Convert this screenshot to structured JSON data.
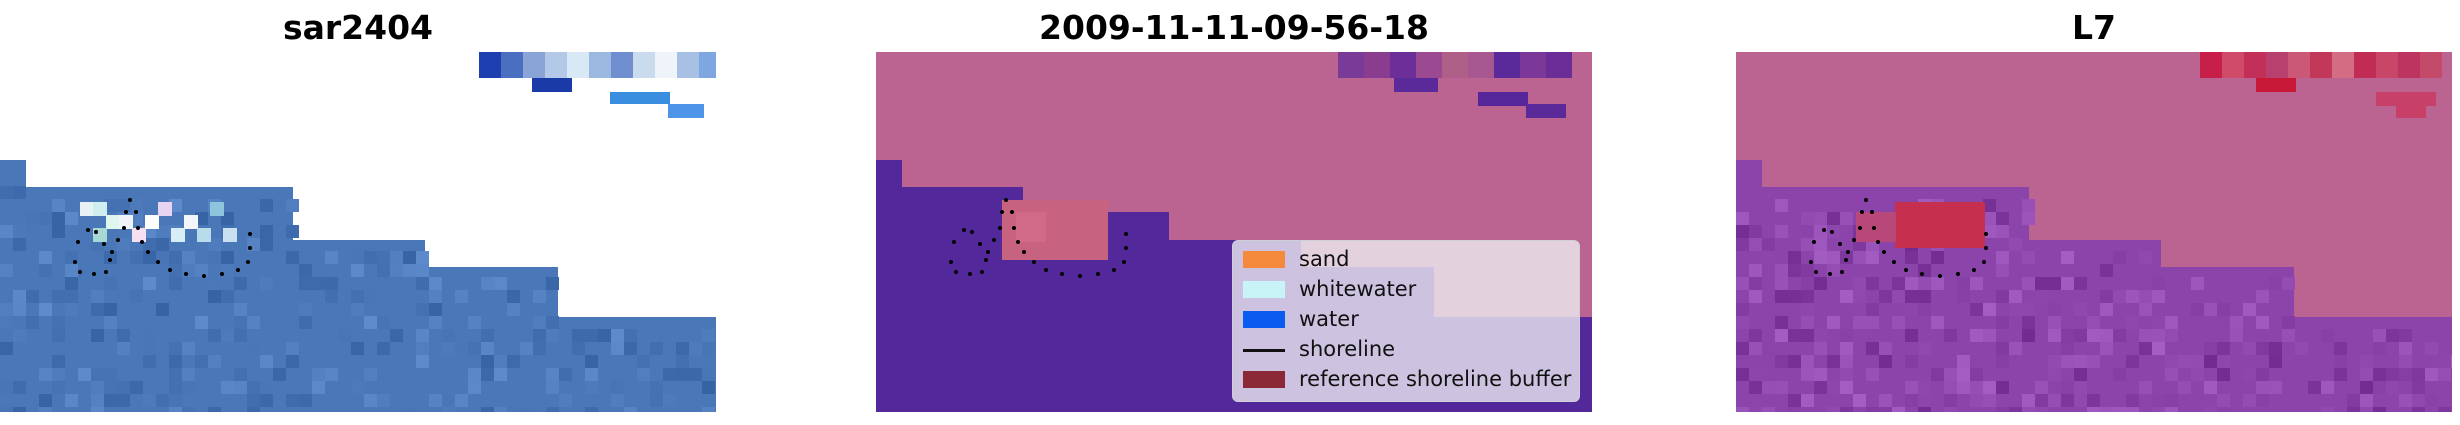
{
  "panels": [
    {
      "title": "sar2404"
    },
    {
      "title": "2009-11-11-09-56-18"
    },
    {
      "title": "L7"
    }
  ],
  "legend": [
    {
      "label": "sand",
      "color": "#f58a3c",
      "kind": "patch"
    },
    {
      "label": "whitewater",
      "color": "#c8f4f8",
      "kind": "patch"
    },
    {
      "label": "water",
      "color": "#0a5cf0",
      "kind": "patch"
    },
    {
      "label": "shoreline",
      "color": "#111111",
      "kind": "line"
    },
    {
      "label": "reference shoreline buffer",
      "color": "#8b2a36",
      "kind": "patch"
    }
  ],
  "colors": {
    "rgb_water": "#4a77b8",
    "class_land": "#bb6391",
    "class_water": "#53289a",
    "class_sand": "#c7637f",
    "index_land": "#bb6391",
    "index_water": "#8a44aa",
    "index_high": "#c6304e"
  }
}
